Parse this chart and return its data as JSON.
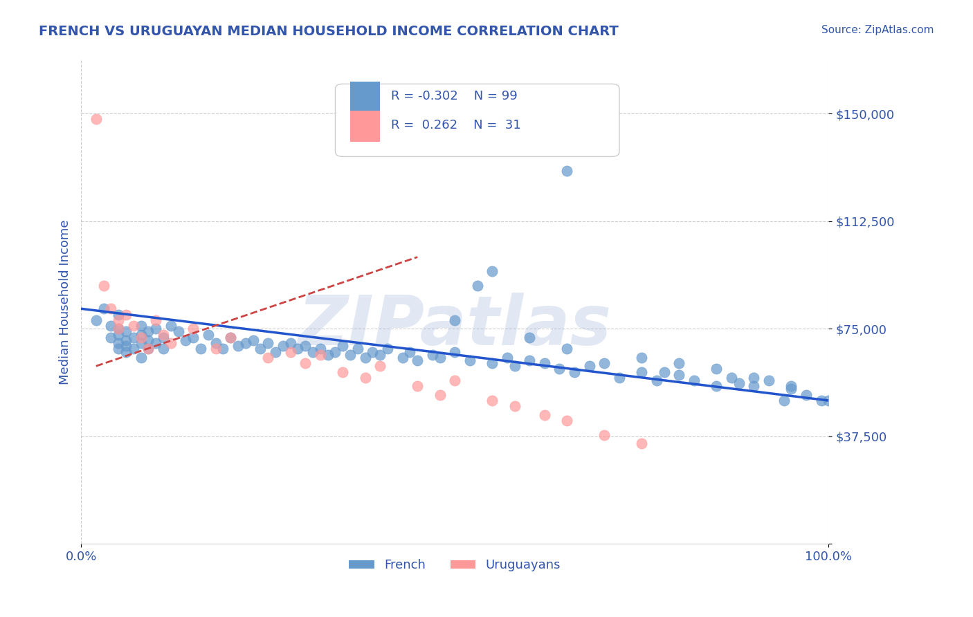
{
  "title": "FRENCH VS URUGUAYAN MEDIAN HOUSEHOLD INCOME CORRELATION CHART",
  "source_text": "Source: ZipAtlas.com",
  "xlabel": "",
  "ylabel": "Median Household Income",
  "watermark": "ZIPatlas",
  "xlim": [
    0.0,
    100.0
  ],
  "ylim": [
    0,
    168750
  ],
  "yticks": [
    0,
    37500,
    75000,
    112500,
    150000
  ],
  "ytick_labels": [
    "",
    "$37,500",
    "$75,000",
    "$112,500",
    "$150,000"
  ],
  "xtick_labels": [
    "0.0%",
    "100.0%"
  ],
  "legend_r1": "R = -0.302",
  "legend_n1": "N = 99",
  "legend_r2": "R =  0.262",
  "legend_n2": "N =  31",
  "french_color": "#6699cc",
  "uruguayan_color": "#ff9999",
  "trend_french_color": "#2255cc",
  "trend_uruguayan_color": "#cc4444",
  "background_color": "#ffffff",
  "grid_color": "#cccccc",
  "title_color": "#3355aa",
  "axis_label_color": "#3355aa",
  "tick_label_color": "#3355aa",
  "watermark_color": "#aabbdd",
  "french_x": [
    2,
    3,
    4,
    4,
    5,
    5,
    5,
    5,
    5,
    6,
    6,
    6,
    6,
    7,
    7,
    8,
    8,
    8,
    8,
    9,
    9,
    9,
    10,
    10,
    11,
    11,
    12,
    13,
    14,
    15,
    16,
    17,
    18,
    19,
    20,
    21,
    22,
    23,
    24,
    25,
    26,
    27,
    28,
    29,
    30,
    31,
    32,
    33,
    34,
    35,
    36,
    37,
    38,
    39,
    40,
    41,
    43,
    44,
    45,
    47,
    48,
    50,
    52,
    53,
    55,
    57,
    58,
    60,
    62,
    64,
    65,
    66,
    68,
    70,
    72,
    75,
    77,
    78,
    80,
    82,
    85,
    87,
    88,
    90,
    92,
    94,
    95,
    97,
    99,
    50,
    55,
    60,
    65,
    75,
    80,
    85,
    90,
    95,
    100
  ],
  "french_y": [
    78000,
    82000,
    76000,
    72000,
    80000,
    75000,
    70000,
    68000,
    73000,
    74000,
    71000,
    69000,
    67000,
    72000,
    68000,
    76000,
    73000,
    70000,
    65000,
    74000,
    71000,
    68000,
    75000,
    70000,
    72000,
    68000,
    76000,
    74000,
    71000,
    72000,
    68000,
    73000,
    70000,
    68000,
    72000,
    69000,
    70000,
    71000,
    68000,
    70000,
    67000,
    69000,
    70000,
    68000,
    69000,
    67000,
    68000,
    66000,
    67000,
    69000,
    66000,
    68000,
    65000,
    67000,
    66000,
    68000,
    65000,
    67000,
    64000,
    66000,
    65000,
    67000,
    64000,
    90000,
    63000,
    65000,
    62000,
    64000,
    63000,
    61000,
    130000,
    60000,
    62000,
    63000,
    58000,
    60000,
    57000,
    60000,
    59000,
    57000,
    55000,
    58000,
    56000,
    55000,
    57000,
    50000,
    54000,
    52000,
    50000,
    78000,
    95000,
    72000,
    68000,
    65000,
    63000,
    61000,
    58000,
    55000,
    50000
  ],
  "uruguayan_x": [
    2,
    3,
    4,
    5,
    5,
    6,
    7,
    8,
    9,
    10,
    11,
    12,
    15,
    18,
    20,
    25,
    28,
    30,
    32,
    35,
    38,
    40,
    45,
    48,
    50,
    55,
    58,
    62,
    65,
    70,
    75
  ],
  "uruguayan_y": [
    148000,
    90000,
    82000,
    78000,
    75000,
    80000,
    76000,
    72000,
    68000,
    78000,
    73000,
    70000,
    75000,
    68000,
    72000,
    65000,
    67000,
    63000,
    66000,
    60000,
    58000,
    62000,
    55000,
    52000,
    57000,
    50000,
    48000,
    45000,
    43000,
    38000,
    35000
  ],
  "french_trend_x": [
    0,
    100
  ],
  "french_trend_y": [
    82000,
    50000
  ],
  "uruguayan_trend_x": [
    2,
    45
  ],
  "uruguayan_trend_y": [
    62000,
    100000
  ]
}
